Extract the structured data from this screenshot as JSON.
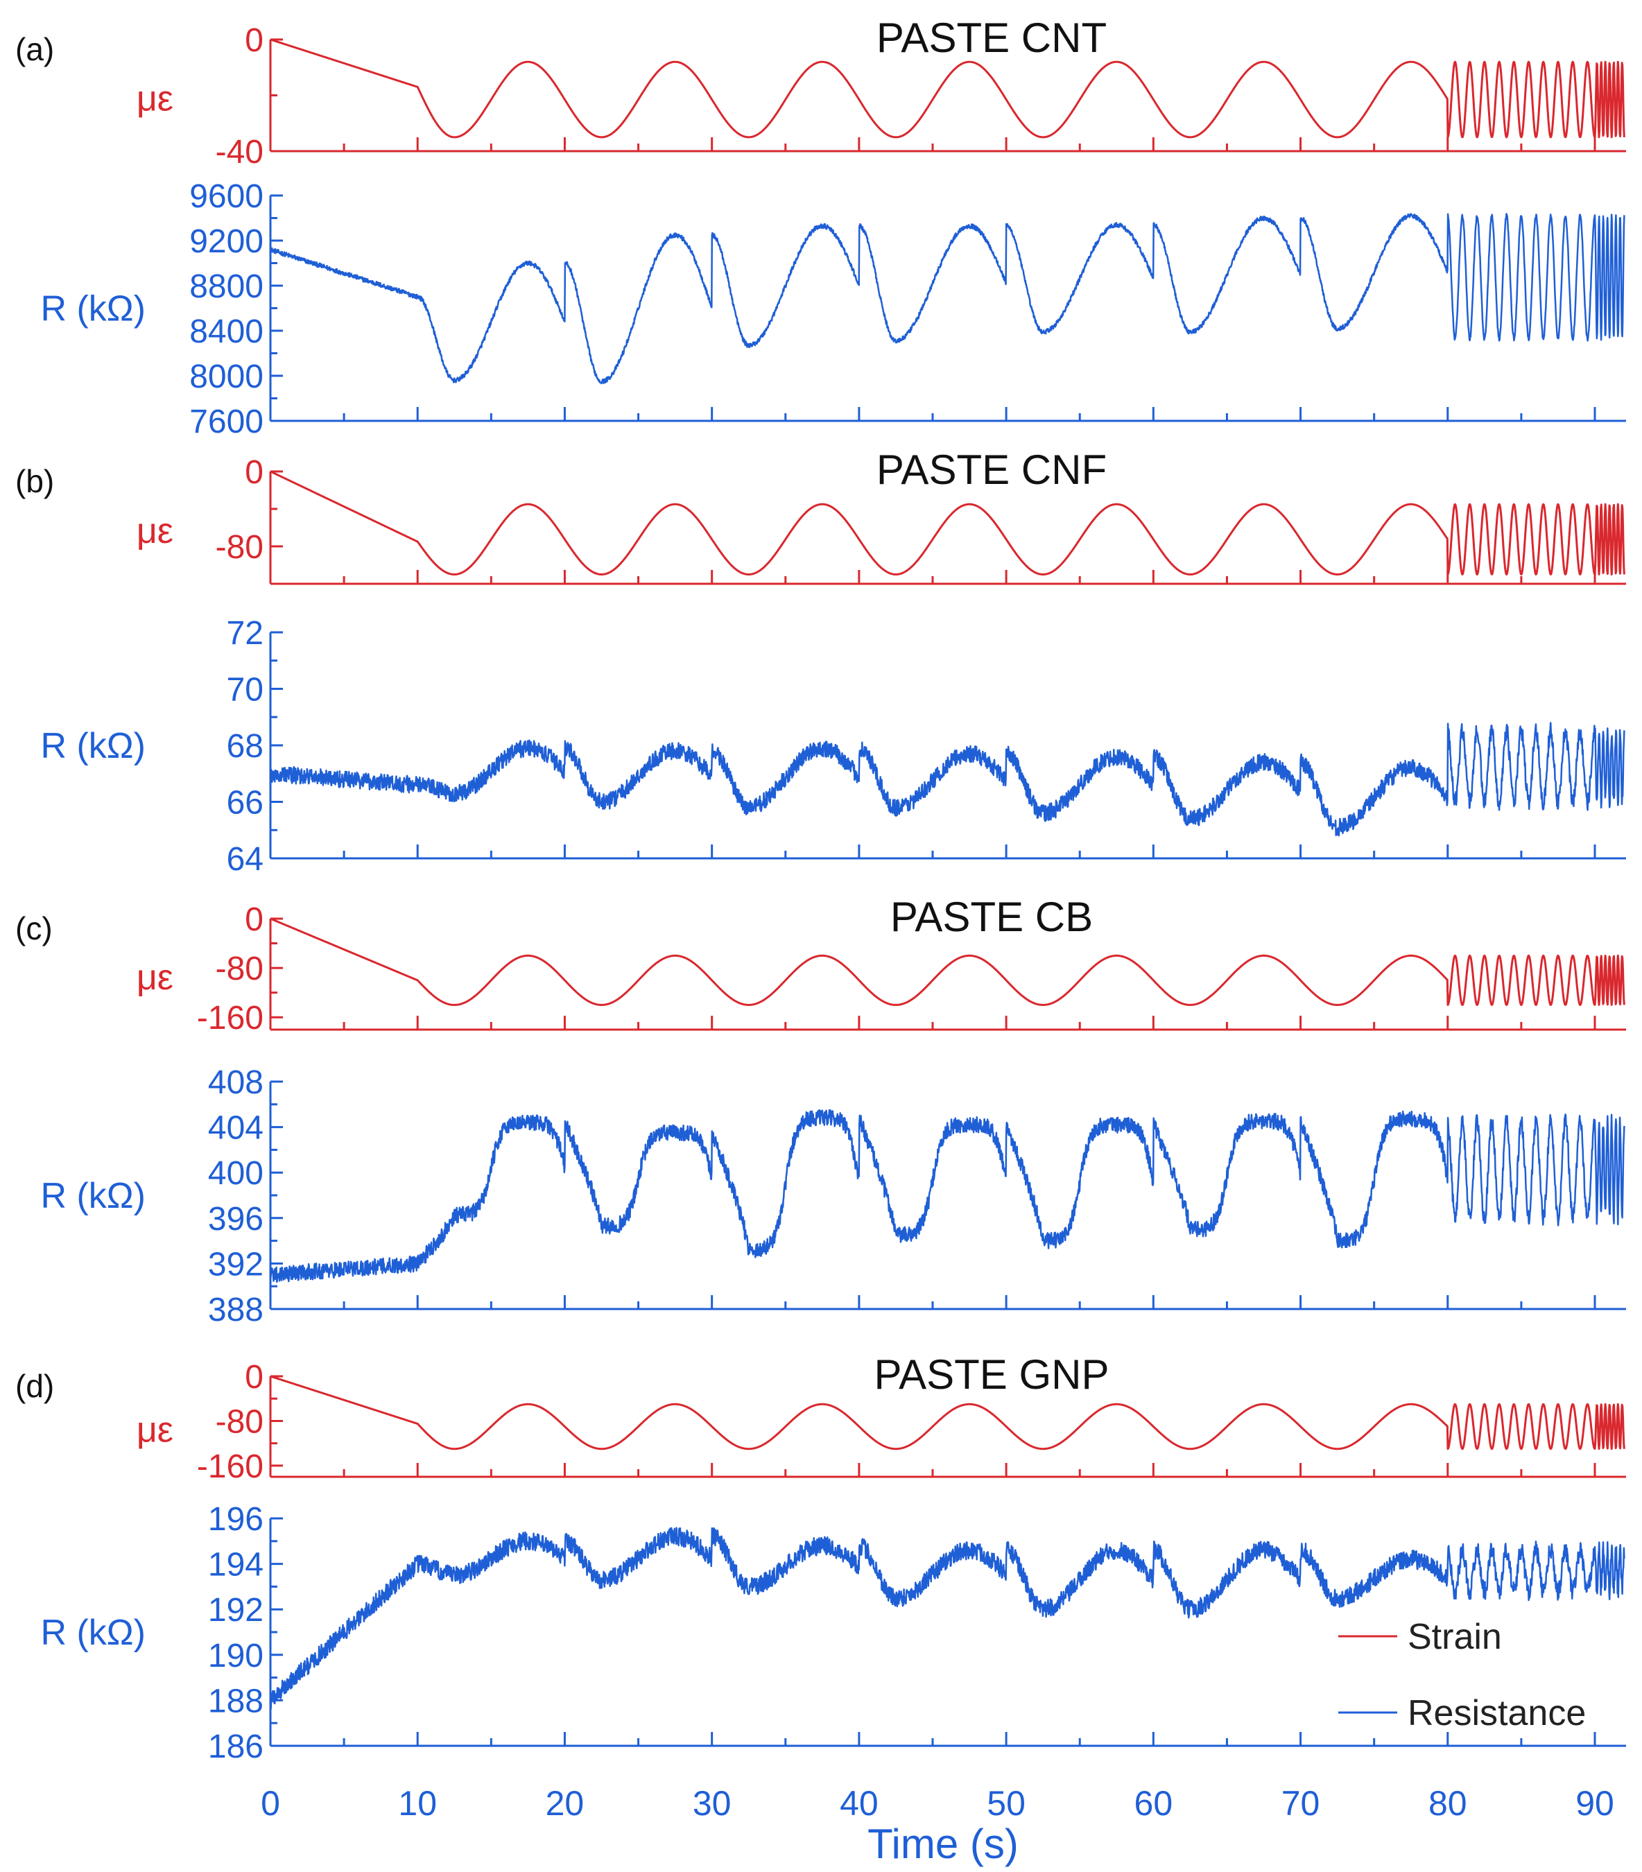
{
  "colors": {
    "strain": "#d9282e",
    "resistance": "#1f5fd6",
    "axis": "#1f5fd6"
  },
  "xaxis": {
    "label": "Time (s)",
    "ticks": [
      "0",
      "10",
      "20",
      "30",
      "40",
      "50",
      "60",
      "70",
      "80",
      "90"
    ],
    "range": [
      0,
      92
    ]
  },
  "legend": {
    "strain": "Strain",
    "resistance": "Resistance",
    "placement": "bottom-right"
  },
  "chart_data": [
    {
      "type": "line",
      "panel": "(a)",
      "title": "PASTE CNT",
      "strain": {
        "ylabel": "με",
        "ylim": [
          -40,
          0
        ],
        "ticks": [
          "0",
          "-40"
        ],
        "start": 0,
        "ramp_end": -17,
        "min": -35,
        "max": -8
      },
      "resistance": {
        "ylabel": "R (kΩ)",
        "ylim": [
          7600,
          9600
        ],
        "ticks": [
          "7600",
          "8000",
          "8400",
          "8800",
          "9200",
          "9600"
        ],
        "start": 9120,
        "ramp_end": 8700,
        "troughs": [
          7960,
          7950,
          8270,
          8310,
          8390,
          8390,
          8420
        ],
        "peaks": [
          9000,
          9250,
          9330,
          9330,
          9340,
          9400,
          9420
        ],
        "fast_range": [
          8330,
          9420
        ]
      }
    },
    {
      "type": "line",
      "panel": "(b)",
      "title": "PASTE CNF",
      "strain": {
        "ylabel": "με",
        "ylim": [
          -120,
          0
        ],
        "ticks": [
          "0",
          "-80"
        ],
        "start": 0,
        "ramp_end": -75,
        "min": -110,
        "max": -35
      },
      "resistance": {
        "ylabel": "R (kΩ)",
        "ylim": [
          64,
          72
        ],
        "ticks": [
          "64",
          "66",
          "68",
          "70",
          "72"
        ],
        "start": 67.0,
        "ramp_end": 66.6,
        "troughs": [
          66.3,
          66.0,
          65.8,
          65.8,
          65.6,
          65.4,
          65.1
        ],
        "peaks": [
          67.9,
          67.8,
          67.9,
          67.7,
          67.6,
          67.4,
          67.2
        ],
        "fast_range": [
          66.0,
          68.5
        ]
      }
    },
    {
      "type": "line",
      "panel": "(c)",
      "title": "PASTE CB",
      "strain": {
        "ylabel": "με",
        "ylim": [
          -180,
          0
        ],
        "ticks": [
          "0",
          "-80",
          "-160"
        ],
        "start": 0,
        "ramp_end": -100,
        "min": -140,
        "max": -60
      },
      "resistance": {
        "ylabel": "R (kΩ)",
        "ylim": [
          388,
          408
        ],
        "ticks": [
          "388",
          "392",
          "396",
          "400",
          "404",
          "408"
        ],
        "start": 391,
        "ramp_end": 392,
        "troughs": [
          396.3,
          395.3,
          393.2,
          394.5,
          394.0,
          395.0,
          394.0
        ],
        "peaks": [
          404.4,
          403.5,
          404.8,
          404.2,
          404.2,
          404.5,
          404.7
        ],
        "fast_range": [
          396,
          404.5
        ]
      }
    },
    {
      "type": "line",
      "panel": "(d)",
      "title": "PASTE GNP",
      "strain": {
        "ylabel": "με",
        "ylim": [
          -180,
          0
        ],
        "ticks": [
          "0",
          "-80",
          "-160"
        ],
        "start": 0,
        "ramp_end": -85,
        "min": -130,
        "max": -50
      },
      "resistance": {
        "ylabel": "R (kΩ)",
        "ylim": [
          186,
          196
        ],
        "ticks": [
          "186",
          "188",
          "190",
          "192",
          "194",
          "196"
        ],
        "start": 188,
        "ramp_end": 194,
        "troughs": [
          193.5,
          193.3,
          193.0,
          192.5,
          192.0,
          192.0,
          192.5
        ],
        "peaks": [
          195.0,
          195.2,
          194.8,
          194.6,
          194.6,
          194.6,
          194.2
        ],
        "fast_range": [
          192.8,
          194.6
        ]
      }
    }
  ]
}
